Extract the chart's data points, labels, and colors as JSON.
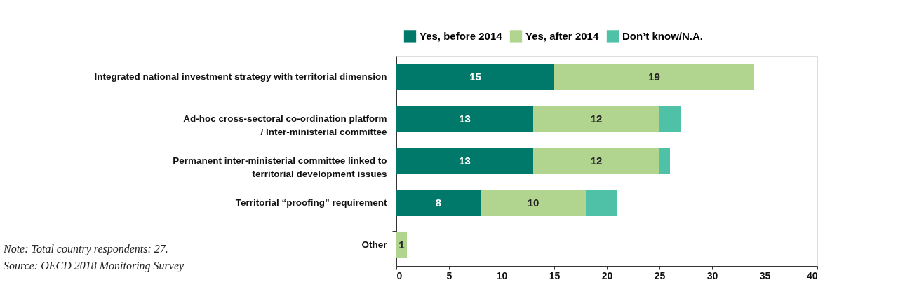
{
  "chart_data": {
    "type": "bar",
    "orientation": "horizontal",
    "stacked": true,
    "categories": [
      "Integrated national investment strategy with territorial dimension",
      "Ad-hoc cross-sectoral co-ordination platform\n/ Inter-ministerial committee",
      "Permanent inter-ministerial committee linked to\nterritorial development issues",
      "Territorial “proofing” requirement",
      "Other"
    ],
    "series": [
      {
        "name": "Yes, before 2014",
        "color": "#00796b",
        "values": [
          15,
          13,
          13,
          8,
          0
        ],
        "value_labels": [
          "15",
          "13",
          "13",
          "8",
          null
        ]
      },
      {
        "name": "Yes, after 2014",
        "color": "#b1d48f",
        "values": [
          19,
          12,
          12,
          10,
          1
        ],
        "value_labels": [
          "19",
          "12",
          "12",
          "10",
          "1"
        ]
      },
      {
        "name": "Don’t know/N.A.",
        "color": "#4fc1a6",
        "values": [
          0,
          2,
          1,
          3,
          0
        ]
      }
    ],
    "xlim": [
      0,
      40
    ],
    "xticks": [
      0,
      5,
      10,
      15,
      20,
      25,
      30,
      35,
      40
    ],
    "grid": false,
    "legend": "top",
    "annotations": [
      "Note: Total country respondents: 27.",
      "Source: OECD 2018 Monitoring Survey"
    ]
  }
}
